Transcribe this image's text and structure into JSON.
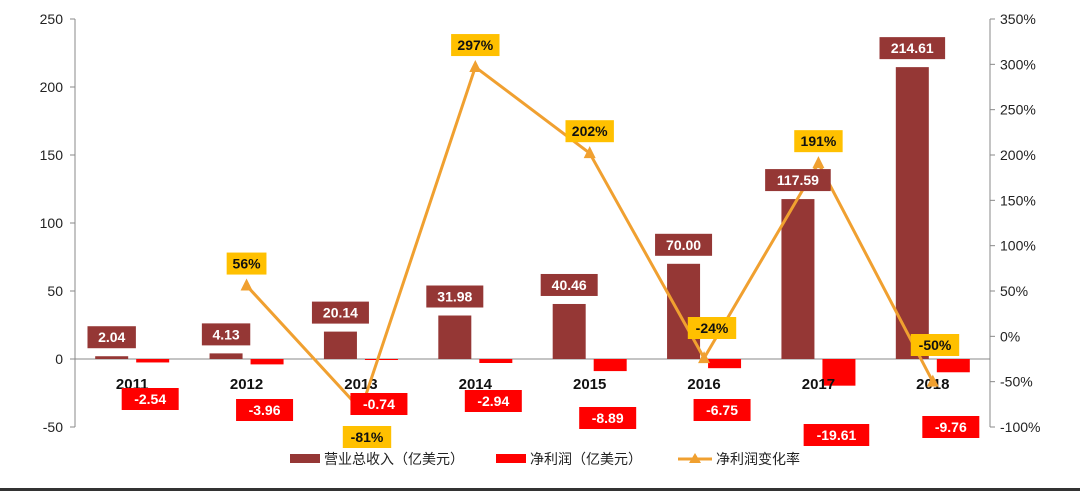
{
  "chart_data": {
    "type": "bar",
    "categories": [
      "2011",
      "2012",
      "2013",
      "2014",
      "2015",
      "2016",
      "2017",
      "2018"
    ],
    "series": [
      {
        "name": "营业总收入（亿美元）",
        "kind": "bar",
        "axis": "left",
        "color": "#953735",
        "values": [
          2.04,
          4.13,
          20.14,
          31.98,
          40.46,
          70.0,
          117.59,
          214.61
        ],
        "labels": [
          "2.04",
          "4.13",
          "20.14",
          "31.98",
          "40.46",
          "70.00",
          "117.59",
          "214.61"
        ]
      },
      {
        "name": "净利润（亿美元）",
        "kind": "bar",
        "axis": "left",
        "color": "#ff0000",
        "values": [
          -2.54,
          -3.96,
          -0.74,
          -2.94,
          -8.89,
          -6.75,
          -19.61,
          -9.76
        ],
        "labels": [
          "-2.54",
          "-3.96",
          "-0.74",
          "-2.94",
          "-8.89",
          "-6.75",
          "-19.61",
          "-9.76"
        ]
      },
      {
        "name": "净利润变化率",
        "kind": "line",
        "axis": "right",
        "color": "#f0a030",
        "label_bg": "#ffc000",
        "values": [
          null,
          56,
          -81,
          297,
          202,
          -24,
          191,
          -50
        ],
        "labels": [
          "",
          "56%",
          "-81%",
          "297%",
          "202%",
          "-24%",
          "191%",
          "-50%"
        ]
      }
    ],
    "ylim_left": [
      -50,
      250
    ],
    "yticks_left": [
      "250",
      "200",
      "150",
      "100",
      "50",
      "0",
      "-50"
    ],
    "ylim_right": [
      -100,
      350
    ],
    "yticks_right": [
      "350%",
      "300%",
      "250%",
      "200%",
      "150%",
      "100%",
      "50%",
      "0%",
      "-50%",
      "-100%"
    ],
    "grid": false,
    "legend_position": "bottom"
  }
}
